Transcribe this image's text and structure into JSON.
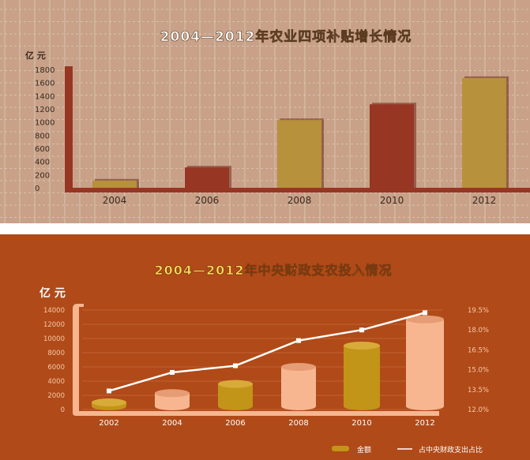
{
  "chart_data": [
    {
      "type": "bar",
      "title": "2004—2012年农业四项补贴增长情况",
      "ylabel": "亿 元",
      "categories": [
        "2004",
        "2006",
        "2008",
        "2010",
        "2012"
      ],
      "values": [
        110,
        310,
        1030,
        1270,
        1670
      ],
      "yticks": [
        0,
        200,
        400,
        600,
        800,
        1000,
        1200,
        1400,
        1600,
        1800
      ],
      "ylim": [
        0,
        1800
      ],
      "grid": true,
      "colors": {
        "background": "#c8a188",
        "gold": "#b8913c",
        "red": "#983624",
        "grid": "#dccbb8",
        "title": "#ffffff"
      }
    },
    {
      "type": "bar+line",
      "title": "2004—2012年中央财政支农投入情况",
      "ylabel": "亿 元",
      "categories": [
        "2002",
        "2004",
        "2006",
        "2008",
        "2010",
        "2012"
      ],
      "series": [
        {
          "name": "金额",
          "type": "bar",
          "axis": "left",
          "values": [
            1000,
            2300,
            3600,
            6000,
            9000,
            12700
          ]
        },
        {
          "name": "占中央财政支出占比",
          "type": "line",
          "axis": "right",
          "values": [
            13.4,
            14.8,
            15.3,
            17.2,
            18.0,
            19.3
          ]
        }
      ],
      "yticks_left": [
        0,
        2000,
        4000,
        6000,
        8000,
        10000,
        12000,
        14000
      ],
      "ylim_left": [
        0,
        14000
      ],
      "yticks_right": [
        "12.0%",
        "13.5%",
        "15.0%",
        "16.5%",
        "18.0%",
        "19.5%"
      ],
      "ylim_right": [
        12.0,
        19.5
      ],
      "legend": "bottom-right",
      "colors": {
        "background": "#b04a18",
        "gold": "#c29418",
        "peach": "#f7b690",
        "line": "#ffffff",
        "grid": "#c56a40",
        "title": "#ffe25a"
      }
    }
  ]
}
